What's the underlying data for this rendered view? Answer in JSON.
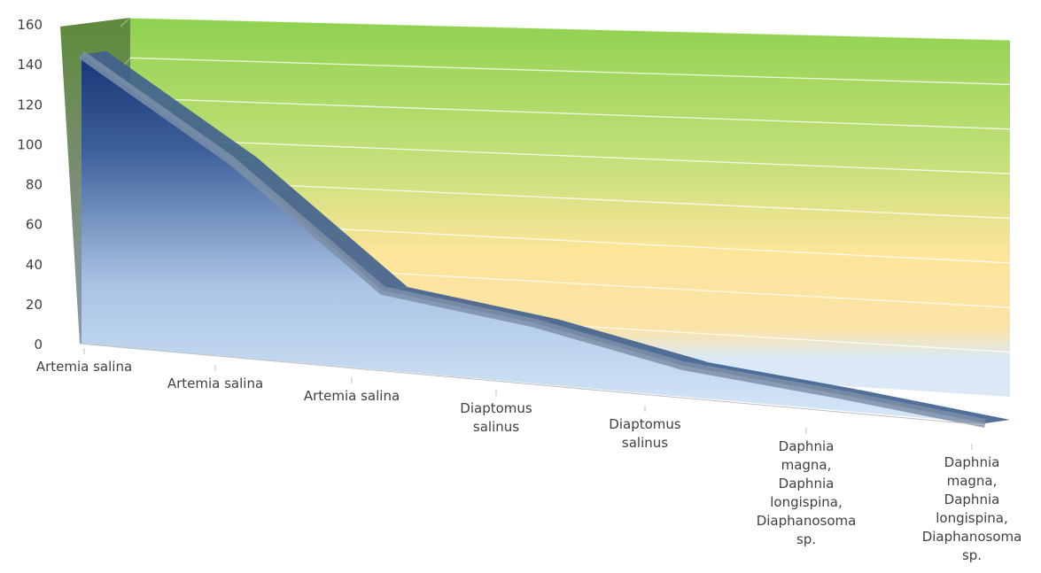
{
  "chart_data": {
    "type": "area",
    "three_d": true,
    "categories": [
      "Artemia salina",
      "Artemia salina",
      "Artemia salina",
      "Diaptomus salinus",
      "Diaptomus salinus",
      "Daphnia magna, Daphnia longispina, Diaphanosoma sp.",
      "Daphnia magna, Daphnia longispina, Diaphanosoma sp."
    ],
    "category_lines": [
      [
        "Artemia salina"
      ],
      [
        "Artemia salina"
      ],
      [
        "Artemia salina"
      ],
      [
        "Diaptomus",
        "salinus"
      ],
      [
        "Diaptomus",
        "salinus"
      ],
      [
        "Daphnia",
        "magna,",
        "Daphnia",
        "longispina,",
        "Diaphanosoma",
        "sp."
      ],
      [
        "Daphnia",
        "magna,",
        "Daphnia",
        "longispina,",
        "Diaphanosoma",
        "sp."
      ]
    ],
    "values": [
      150,
      100,
      40,
      30,
      15,
      8,
      0
    ],
    "yticks": [
      0,
      20,
      40,
      60,
      80,
      100,
      120,
      140,
      160
    ],
    "ylim": [
      0,
      160
    ],
    "grid": true,
    "title": "",
    "xlabel": "",
    "ylabel": "",
    "colors": {
      "series_top": "#0f2d6e",
      "series_bottom": "#d4e6f8",
      "edge": "#8a9bb0",
      "wall_top": "#8fd14f",
      "wall_mid": "#fde59a",
      "wall_bottom": "#dbe9f7"
    }
  }
}
